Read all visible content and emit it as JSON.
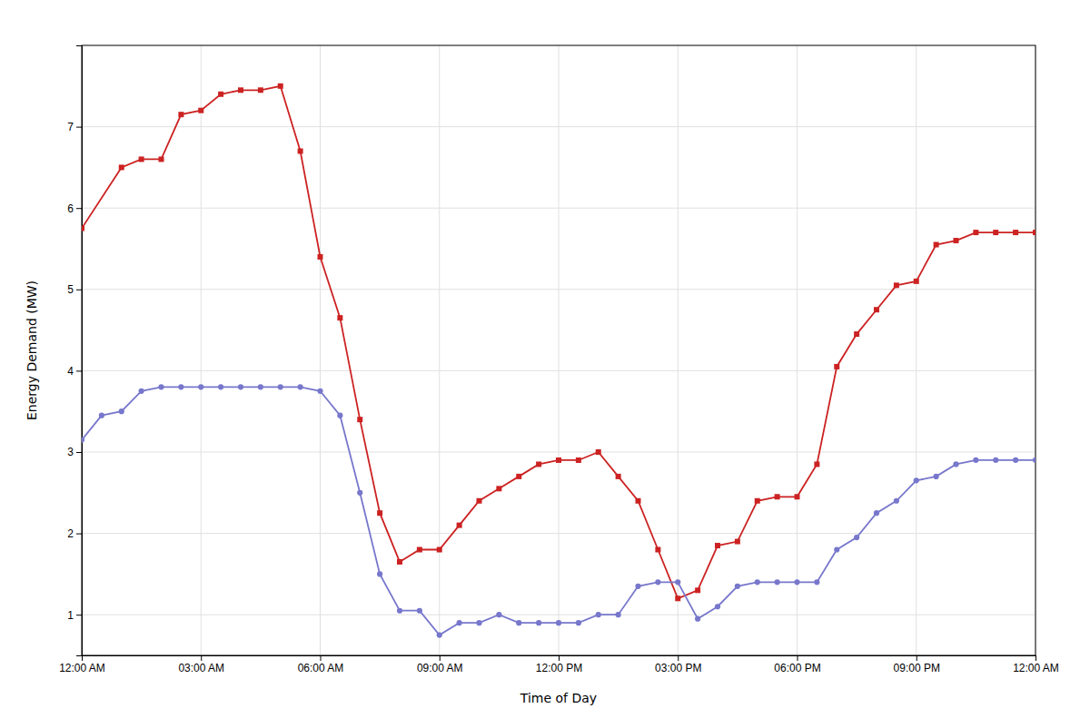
{
  "chart_data": {
    "type": "line",
    "xlabel": "Time of Day",
    "ylabel": "Energy Demand (MW)",
    "xlim": [
      0,
      24
    ],
    "ylim": [
      0.5,
      8.0
    ],
    "xticks": [
      {
        "value": 0,
        "label": "12:00 AM"
      },
      {
        "value": 3,
        "label": "03:00 AM"
      },
      {
        "value": 6,
        "label": "06:00 AM"
      },
      {
        "value": 9,
        "label": "09:00 AM"
      },
      {
        "value": 12,
        "label": "12:00 PM"
      },
      {
        "value": 15,
        "label": "03:00 PM"
      },
      {
        "value": 18,
        "label": "06:00 PM"
      },
      {
        "value": 21,
        "label": "09:00 PM"
      },
      {
        "value": 24,
        "label": "12:00 AM"
      }
    ],
    "yticks": [
      1,
      2,
      3,
      4,
      5,
      6,
      7
    ],
    "grid": true,
    "series": [
      {
        "color": "#cc2222",
        "marker": "square",
        "x": [
          0,
          1,
          1.5,
          2,
          2.5,
          3,
          3.5,
          4,
          4.5,
          5,
          5.5,
          6,
          6.5,
          7,
          7.5,
          8,
          8.5,
          9,
          9.5,
          10,
          10.5,
          11,
          11.5,
          12,
          12.5,
          13,
          13.5,
          14,
          14.5,
          15,
          15.5,
          16,
          16.5,
          17,
          17.5,
          18,
          18.5,
          19,
          19.5,
          20,
          20.5,
          21,
          21.5,
          22,
          22.5,
          23,
          23.5,
          24
        ],
        "values": [
          5.75,
          6.5,
          6.6,
          6.6,
          7.15,
          7.2,
          7.4,
          7.45,
          7.45,
          7.5,
          6.7,
          5.4,
          4.65,
          3.4,
          2.25,
          1.65,
          1.8,
          1.8,
          2.1,
          2.4,
          2.55,
          2.7,
          2.85,
          2.9,
          2.9,
          3.0,
          2.7,
          2.4,
          1.8,
          1.2,
          1.3,
          1.85,
          1.9,
          2.4,
          2.45,
          2.45,
          2.85,
          4.05,
          4.45,
          4.75,
          5.05,
          5.1,
          5.55,
          5.6,
          5.7,
          5.7,
          5.7,
          5.7
        ]
      },
      {
        "color": "#7777cc",
        "marker": "circle",
        "x": [
          0,
          0.5,
          1,
          1.5,
          2,
          2.5,
          3,
          3.5,
          4,
          4.5,
          5,
          5.5,
          6,
          6.5,
          7,
          7.5,
          8,
          8.5,
          9,
          9.5,
          10,
          10.5,
          11,
          11.5,
          12,
          12.5,
          13,
          13.5,
          14,
          14.5,
          15,
          15.5,
          16,
          16.5,
          17,
          17.5,
          18,
          18.5,
          19,
          19.5,
          20,
          20.5,
          21,
          21.5,
          22,
          22.5,
          23,
          23.5,
          24
        ],
        "values": [
          3.15,
          3.45,
          3.5,
          3.75,
          3.8,
          3.8,
          3.8,
          3.8,
          3.8,
          3.8,
          3.8,
          3.8,
          3.75,
          3.45,
          2.5,
          1.5,
          1.05,
          1.05,
          0.75,
          0.9,
          0.9,
          1.0,
          0.9,
          0.9,
          0.9,
          0.9,
          1.0,
          1.0,
          1.35,
          1.4,
          1.4,
          0.95,
          1.1,
          1.35,
          1.4,
          1.4,
          1.4,
          1.4,
          1.8,
          1.95,
          2.25,
          2.4,
          2.65,
          2.7,
          2.85,
          2.9,
          2.9,
          2.9,
          2.9
        ]
      }
    ]
  }
}
